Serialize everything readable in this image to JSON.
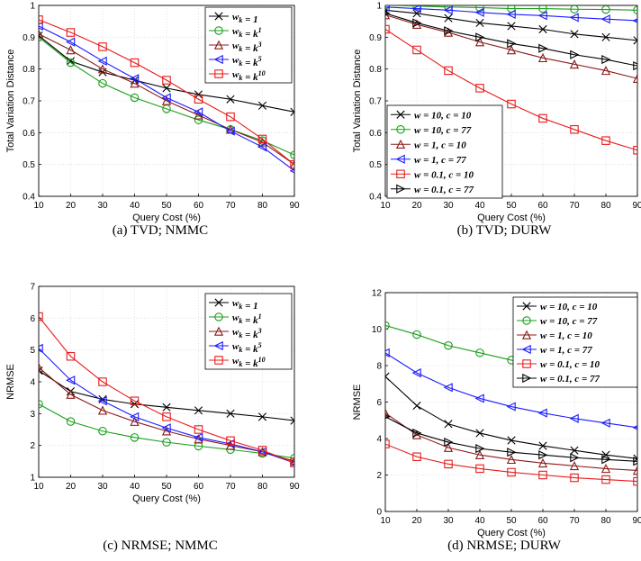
{
  "chart_data": [
    {
      "type": "line",
      "caption": "(a) TVD; NMMC",
      "xlabel": "Query Cost (%)",
      "ylabel": "Total Variation Distance",
      "xlim": [
        10,
        90
      ],
      "ylim": [
        0.4,
        1.0
      ],
      "xticks": [
        "10",
        "20",
        "30",
        "40",
        "50",
        "60",
        "70",
        "80",
        "90"
      ],
      "yticks": [
        "0.4",
        "0.5",
        "0.6",
        "0.7",
        "0.8",
        "0.9",
        "1"
      ],
      "grid": true,
      "legend_position": "top-right",
      "x": [
        10,
        20,
        30,
        40,
        50,
        60,
        70,
        80,
        90
      ],
      "series": [
        {
          "name": "w_k = 1",
          "color": "#000000",
          "marker": "x",
          "values": [
            0.905,
            0.825,
            0.79,
            0.765,
            0.74,
            0.72,
            0.705,
            0.685,
            0.665
          ]
        },
        {
          "name": "w_k = k^1",
          "color": "#1a9e1a",
          "marker": "circle",
          "values": [
            0.9,
            0.82,
            0.755,
            0.71,
            0.675,
            0.64,
            0.61,
            0.575,
            0.53
          ]
        },
        {
          "name": "w_k = k^3",
          "color": "#8b1a1a",
          "marker": "triangle-up",
          "values": [
            0.91,
            0.86,
            0.8,
            0.755,
            0.7,
            0.655,
            0.61,
            0.57,
            0.5
          ]
        },
        {
          "name": "w_k = k^5",
          "color": "#1a1aff",
          "marker": "triangle-left",
          "values": [
            0.935,
            0.885,
            0.825,
            0.77,
            0.71,
            0.665,
            0.605,
            0.555,
            0.48
          ]
        },
        {
          "name": "w_k = k^10",
          "color": "#e81a1a",
          "marker": "square",
          "values": [
            0.955,
            0.915,
            0.87,
            0.82,
            0.765,
            0.705,
            0.65,
            0.58,
            0.5
          ]
        }
      ]
    },
    {
      "type": "line",
      "caption": "(b) TVD; DURW",
      "xlabel": "Query Cost (%)",
      "ylabel": "Total Variation Distance",
      "xlim": [
        10,
        90
      ],
      "ylim": [
        0.4,
        1.0
      ],
      "xticks": [
        "10",
        "20",
        "30",
        "40",
        "50",
        "60",
        "70",
        "80",
        "90"
      ],
      "yticks": [
        "0.4",
        "0.5",
        "0.6",
        "0.7",
        "0.8",
        "0.9",
        "1"
      ],
      "grid": true,
      "legend_position": "bottom-left",
      "x": [
        10,
        20,
        30,
        40,
        50,
        60,
        70,
        80,
        90
      ],
      "series": [
        {
          "name": "w = 10, c = 10",
          "color": "#000000",
          "marker": "x",
          "values": [
            0.985,
            0.975,
            0.96,
            0.945,
            0.935,
            0.925,
            0.91,
            0.9,
            0.89
          ]
        },
        {
          "name": "w = 10, c = 77",
          "color": "#1a9e1a",
          "marker": "circle",
          "values": [
            1.0,
            0.998,
            0.995,
            0.993,
            0.99,
            0.99,
            0.988,
            0.987,
            0.985
          ]
        },
        {
          "name": "w = 1, c = 10",
          "color": "#8b1a1a",
          "marker": "triangle-up",
          "values": [
            0.97,
            0.94,
            0.915,
            0.885,
            0.86,
            0.835,
            0.815,
            0.795,
            0.77
          ]
        },
        {
          "name": "w = 1, c = 77",
          "color": "#1a1aff",
          "marker": "triangle-left",
          "values": [
            0.995,
            0.99,
            0.985,
            0.978,
            0.972,
            0.968,
            0.962,
            0.957,
            0.952
          ]
        },
        {
          "name": "w = 0.1, c = 10",
          "color": "#e81a1a",
          "marker": "square",
          "values": [
            0.925,
            0.86,
            0.795,
            0.74,
            0.69,
            0.645,
            0.61,
            0.575,
            0.545
          ]
        },
        {
          "name": "w = 0.1, c = 77",
          "color": "#000000",
          "marker": "triangle-right",
          "values": [
            0.975,
            0.945,
            0.92,
            0.9,
            0.88,
            0.865,
            0.845,
            0.83,
            0.81
          ]
        }
      ]
    },
    {
      "type": "line",
      "caption": "(c) NRMSE; NMMC",
      "xlabel": "Query Cost (%)",
      "ylabel": "NRMSE",
      "xlim": [
        10,
        90
      ],
      "ylim": [
        1,
        7
      ],
      "xticks": [
        "10",
        "20",
        "30",
        "40",
        "50",
        "60",
        "70",
        "80",
        "90"
      ],
      "yticks": [
        "1",
        "2",
        "3",
        "4",
        "5",
        "6",
        "7"
      ],
      "grid": true,
      "legend_position": "top-right",
      "x": [
        10,
        20,
        30,
        40,
        50,
        60,
        70,
        80,
        90
      ],
      "series": [
        {
          "name": "w_k = 1",
          "color": "#000000",
          "marker": "x",
          "values": [
            4.35,
            3.7,
            3.45,
            3.3,
            3.2,
            3.1,
            3.0,
            2.9,
            2.78
          ]
        },
        {
          "name": "w_k = k^1",
          "color": "#1a9e1a",
          "marker": "circle",
          "values": [
            3.3,
            2.75,
            2.45,
            2.25,
            2.1,
            1.98,
            1.87,
            1.75,
            1.6
          ]
        },
        {
          "name": "w_k = k^3",
          "color": "#8b1a1a",
          "marker": "triangle-up",
          "values": [
            4.45,
            3.6,
            3.1,
            2.75,
            2.45,
            2.2,
            2.0,
            1.8,
            1.5
          ]
        },
        {
          "name": "w_k = k^5",
          "color": "#1a1aff",
          "marker": "triangle-left",
          "values": [
            5.05,
            4.05,
            3.4,
            2.9,
            2.55,
            2.25,
            2.05,
            1.8,
            1.45
          ]
        },
        {
          "name": "w_k = k^10",
          "color": "#e81a1a",
          "marker": "square",
          "values": [
            6.05,
            4.8,
            4.0,
            3.4,
            2.9,
            2.5,
            2.15,
            1.85,
            1.45
          ]
        }
      ]
    },
    {
      "type": "line",
      "caption": "(d) NRMSE; DURW",
      "xlabel": "Query Cost (%)",
      "ylabel": "NRMSE",
      "xlim": [
        10,
        90
      ],
      "ylim": [
        0,
        12
      ],
      "xticks": [
        "10",
        "20",
        "30",
        "40",
        "50",
        "60",
        "70",
        "80",
        "90"
      ],
      "yticks": [
        "0",
        "2",
        "4",
        "6",
        "8",
        "10",
        "12"
      ],
      "grid": true,
      "legend_position": "top-right",
      "x": [
        10,
        20,
        30,
        40,
        50,
        60,
        70,
        80,
        90
      ],
      "series": [
        {
          "name": "w = 10, c = 10",
          "color": "#000000",
          "marker": "x",
          "values": [
            7.4,
            5.8,
            4.8,
            4.3,
            3.9,
            3.6,
            3.35,
            3.1,
            2.9
          ]
        },
        {
          "name": "w = 10, c = 77",
          "color": "#1a9e1a",
          "marker": "circle",
          "values": [
            10.2,
            9.7,
            9.1,
            8.7,
            8.3,
            7.9,
            7.6,
            7.3,
            7.0
          ]
        },
        {
          "name": "w = 1, c = 10",
          "color": "#8b1a1a",
          "marker": "triangle-up",
          "values": [
            5.4,
            4.2,
            3.5,
            3.1,
            2.85,
            2.65,
            2.5,
            2.35,
            2.25
          ]
        },
        {
          "name": "w = 1, c = 77",
          "color": "#1a1aff",
          "marker": "triangle-left",
          "values": [
            8.7,
            7.6,
            6.8,
            6.2,
            5.75,
            5.4,
            5.1,
            4.85,
            4.6
          ]
        },
        {
          "name": "w = 0.1, c = 10",
          "color": "#e81a1a",
          "marker": "square",
          "values": [
            3.7,
            3.0,
            2.6,
            2.35,
            2.15,
            2.0,
            1.85,
            1.75,
            1.65
          ]
        },
        {
          "name": "w = 0.1, c = 77",
          "color": "#000000",
          "marker": "triangle-right",
          "values": [
            5.2,
            4.3,
            3.8,
            3.45,
            3.25,
            3.1,
            2.95,
            2.85,
            2.75
          ]
        }
      ]
    }
  ]
}
